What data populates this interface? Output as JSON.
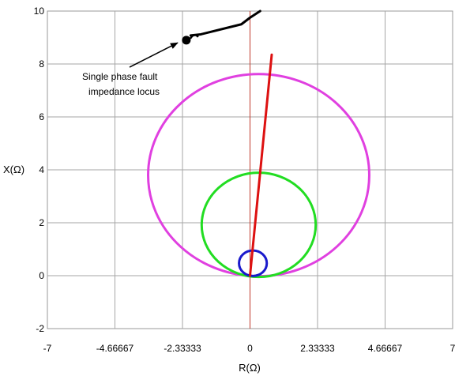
{
  "chart_data": {
    "type": "line",
    "title": "",
    "xlabel": "R(Ω)",
    "ylabel": "X(Ω)",
    "xlim": [
      -7,
      7
    ],
    "ylim": [
      -2,
      10
    ],
    "xticks": [
      "-7",
      "-4.66667",
      "-2.33333",
      "0",
      "2.33333",
      "4.66667",
      "7"
    ],
    "xtick_values": [
      -7,
      -4.66667,
      -2.33333,
      0,
      2.33333,
      4.66667,
      7
    ],
    "yticks": [
      "-2",
      "0",
      "2",
      "4",
      "6",
      "8",
      "10"
    ],
    "ytick_values": [
      -2,
      0,
      2,
      4,
      6,
      8,
      10
    ],
    "grid": true,
    "legend": "none",
    "circles": [
      {
        "color": "#e040e0",
        "cx": 0.3,
        "cy": 3.8,
        "r": 3.82
      },
      {
        "color": "#22dd22",
        "cx": 0.3,
        "cy": 1.92,
        "r": 1.97
      },
      {
        "color": "#1a1acc",
        "cx": 0.1,
        "cy": 0.47,
        "r": 0.48
      }
    ],
    "vertical_line": {
      "color": "#c0392b",
      "x": 0
    },
    "series": [
      {
        "color": "#dd1111",
        "x": [
          0.0,
          0.75
        ],
        "y": [
          0.0,
          8.35
        ]
      },
      {
        "color": "#000000",
        "x": [
          -2.05,
          -1.7,
          -0.3,
          0.0,
          0.35
        ],
        "y": [
          9.08,
          9.12,
          9.5,
          9.75,
          10.0
        ]
      }
    ],
    "marker": {
      "x": [
        -2.2
      ],
      "y": [
        8.9
      ],
      "color": "#000000"
    },
    "annotation": {
      "lines": [
        "Single phase fault",
        "impedance locus"
      ],
      "text_at": [
        -5.8,
        7.4
      ],
      "arrow_to": [
        -2.5,
        8.8
      ]
    }
  }
}
